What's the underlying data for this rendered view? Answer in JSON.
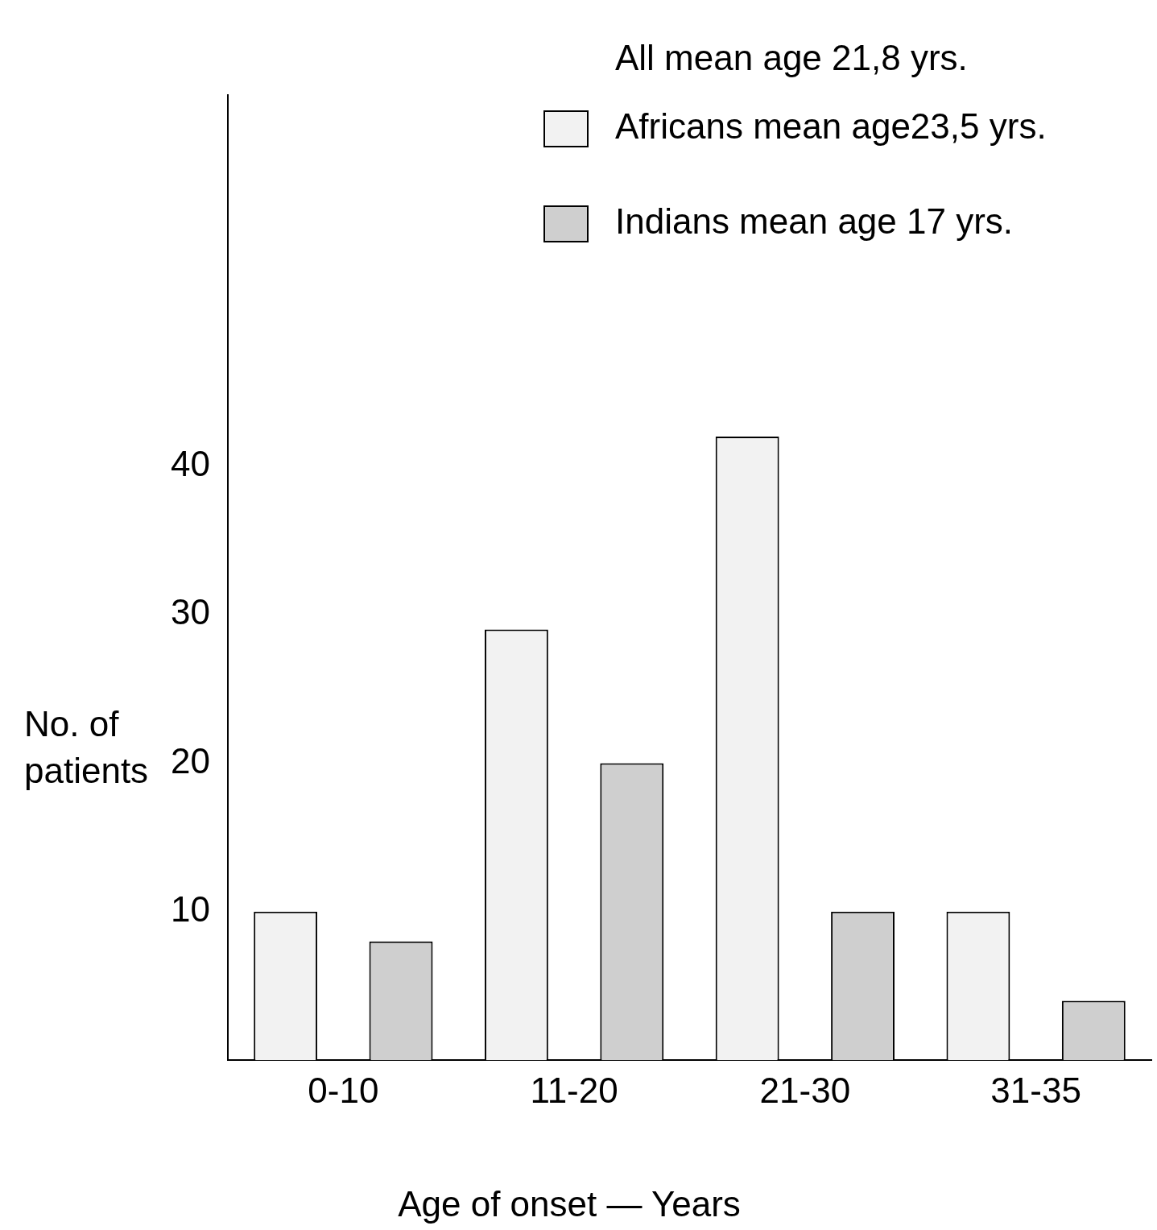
{
  "chart_data": {
    "type": "bar",
    "categories": [
      "0-10",
      "11-20",
      "21-30",
      "31-35"
    ],
    "series": [
      {
        "name": "Africans mean age23,5 yrs.",
        "color": "#f2f2f2",
        "values": [
          10,
          29,
          42,
          10
        ]
      },
      {
        "name": "Indians mean age 17 yrs.",
        "color": "#cfcfcf",
        "values": [
          8,
          20,
          10,
          4
        ]
      }
    ],
    "xlabel": "Age of onset — Years",
    "ylabel": "No. of patients",
    "annotations": [
      "All mean age 21,8 yrs."
    ],
    "ylim": [
      0,
      65
    ],
    "yticks": [
      10,
      20,
      30,
      40
    ],
    "grid": false,
    "legend": "top right"
  }
}
